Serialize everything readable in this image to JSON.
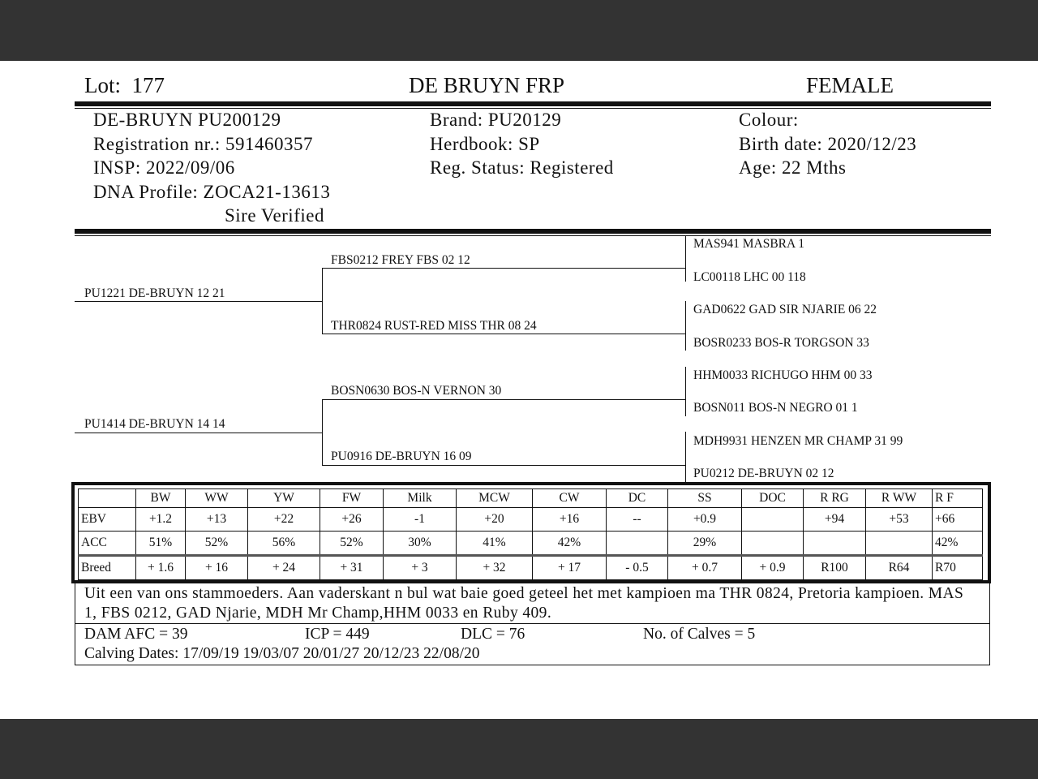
{
  "header": {
    "lot_label": "Lot:",
    "lot": "177",
    "breeder": "DE BRUYN FRP",
    "sex": "FEMALE"
  },
  "info": {
    "name": "DE-BRUYN PU200129",
    "registration": "Registration nr.: 591460357",
    "insp": "INSP: 2022/09/06",
    "dna": "DNA Profile:  ZOCA21-13613",
    "sire_verified": "Sire Verified",
    "brand": "Brand:  PU20129",
    "herdbook": "Herdbook: SP",
    "reg_status": "Reg. Status: Registered",
    "colour": "Colour:",
    "birth_date": "Birth date:  2020/12/23",
    "age": "Age: 22 Mths"
  },
  "pedigree": {
    "sire": "PU1221 DE-BRUYN 12 21",
    "dam": "PU1414 DE-BRUYN 14 14",
    "gen2": [
      "FBS0212 FREY FBS 02 12",
      "THR0824 RUST-RED MISS THR 08 24",
      "BOSN0630 BOS-N VERNON 30",
      "PU0916 DE-BRUYN 16 09"
    ],
    "gen3": [
      "MAS941 MASBRA 1",
      "LC00118 LHC 00 118",
      "GAD0622 GAD SIR NJARIE 06 22",
      "BOSR0233 BOS-R TORGSON 33",
      "HHM0033 RICHUGO HHM 00 33",
      "BOSN011 BOS-N NEGRO 01 1",
      "MDH9931 HENZEN MR CHAMP 31 99",
      "PU0212 DE-BRUYN 02 12"
    ]
  },
  "ebv_table": {
    "headers": [
      "",
      "BW",
      "WW",
      "YW",
      "FW",
      "Milk",
      "MCW",
      "CW",
      "DC",
      "SS",
      "DOC",
      "R RG",
      "R WW",
      "R F"
    ],
    "rows": [
      [
        "EBV",
        "+1.2",
        "+13",
        "+22",
        "+26",
        "-1",
        "+20",
        "+16",
        "--",
        "+0.9",
        "",
        "+94",
        "+53",
        "+66"
      ],
      [
        "ACC",
        "51%",
        "52%",
        "56%",
        "52%",
        "30%",
        "41%",
        "42%",
        "",
        "29%",
        "",
        "",
        "",
        "42%"
      ],
      [
        "Breed",
        "+ 1.6",
        "+ 16",
        "+ 24",
        "+ 31",
        "+ 3",
        "+ 32",
        "+ 17",
        "- 0.5",
        "+ 0.7",
        "+ 0.9",
        "R100",
        "R64",
        "R70"
      ]
    ]
  },
  "comments": "Uit een van ons stammoeders. Aan vaderskant n bul wat baie goed geteel het met kampioen ma THR 0824, Pretoria kampioen. MAS 1, FBS 0212, GAD Njarie, MDH Mr Champ,HHM 0033 en Ruby 409.",
  "footer": {
    "afc": "DAM AFC = 39",
    "icp": "ICP = 449",
    "dlc": "DLC = 76",
    "calves": "No. of Calves = 5",
    "calving_dates": "Calving Dates: 17/09/19  19/03/07  20/01/27  20/12/23  22/08/20"
  }
}
